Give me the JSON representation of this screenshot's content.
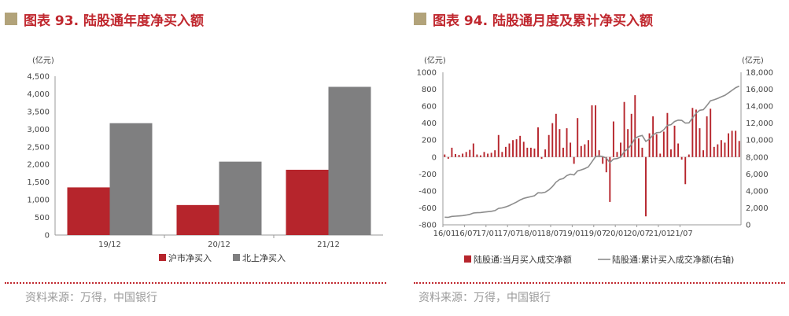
{
  "left_panel": {
    "title": "图表 93. 陆股通年度净买入额",
    "source": "资料来源：万得，中国银行"
  },
  "right_panel": {
    "title": "图表 94. 陆股通月度及累计净买入额",
    "source": "资料来源：万得，中国银行"
  },
  "colors": {
    "title_mark": "#b2a37a",
    "title_red": "#c0282f",
    "bar_red": "#b6252c",
    "bar_gray": "#7f7f80",
    "line_gray": "#8c8c8c",
    "axis": "#9a9a9a"
  },
  "chart_data": [
    {
      "type": "bar",
      "unit_label": "(亿元)",
      "categories": [
        "19/12",
        "20/12",
        "21/12"
      ],
      "series": [
        {
          "name": "沪市净买入",
          "values": [
            1350,
            850,
            1850
          ]
        },
        {
          "name": "北上净买入",
          "values": [
            3170,
            2080,
            4200
          ]
        }
      ],
      "yticks": [
        "0",
        "500",
        "1,000",
        "1,500",
        "2,000",
        "2,500",
        "3,000",
        "3,500",
        "4,000",
        "4,500"
      ],
      "ylim": [
        0,
        4500
      ],
      "legend_position": "bottom"
    },
    {
      "type": "bar+line",
      "left_unit_label": "(亿元)",
      "right_unit_label": "(亿元)",
      "x_tick_labels": [
        "16/01",
        "16/07",
        "17/01",
        "17/07",
        "18/01",
        "18/07",
        "19/01",
        "19/07",
        "20/01",
        "20/07",
        "21/01",
        "21/07"
      ],
      "left_yticks": [
        "-800",
        "-600",
        "-400",
        "-200",
        "0",
        "200",
        "400",
        "600",
        "800",
        "1000"
      ],
      "right_yticks": [
        "0",
        "2,000",
        "4,000",
        "6,000",
        "8,000",
        "10,000",
        "12,000",
        "14,000",
        "16,000",
        "18,000"
      ],
      "left_ylim": [
        -800,
        1000
      ],
      "right_ylim": [
        0,
        18000
      ],
      "series": [
        {
          "name": "陆股通:当月买入成交净额",
          "axis": "left",
          "kind": "bar",
          "values": [
            30,
            -20,
            110,
            35,
            25,
            40,
            60,
            85,
            160,
            30,
            20,
            60,
            40,
            50,
            80,
            260,
            60,
            120,
            160,
            200,
            210,
            250,
            180,
            110,
            110,
            100,
            350,
            -20,
            90,
            260,
            400,
            510,
            330,
            110,
            340,
            170,
            -80,
            460,
            130,
            150,
            200,
            610,
            610,
            80,
            -80,
            -180,
            -530,
            420,
            60,
            170,
            650,
            330,
            510,
            730,
            220,
            110,
            -700,
            280,
            480,
            270,
            40,
            300,
            520,
            90,
            370,
            160,
            -30,
            -320,
            30,
            580,
            560,
            340,
            80,
            480,
            570,
            120,
            150,
            200,
            170,
            280,
            310,
            310,
            190
          ]
        },
        {
          "name": "陆股通:累计买入成交净额(右轴)",
          "axis": "right",
          "kind": "line",
          "values": [
            900,
            880,
            990,
            1025,
            1050,
            1090,
            1150,
            1235,
            1395,
            1425,
            1445,
            1505,
            1545,
            1595,
            1675,
            1935,
            1995,
            2115,
            2275,
            2475,
            2685,
            2935,
            3115,
            3225,
            3335,
            3435,
            3785,
            3765,
            3855,
            4115,
            4515,
            5025,
            5355,
            5465,
            5805,
            5975,
            5895,
            6355,
            6485,
            6635,
            6835,
            7445,
            8055,
            8135,
            8055,
            7875,
            7345,
            7765,
            7825,
            7995,
            8645,
            8975,
            9485,
            10215,
            10435,
            10545,
            9845,
            10125,
            10605,
            10875,
            10915,
            11215,
            11735,
            11825,
            12195,
            12355,
            12325,
            12005,
            12035,
            12615,
            13175,
            13515,
            13595,
            14075,
            14645,
            14765,
            14915,
            15115,
            15285,
            15565,
            15875,
            16185,
            16375
          ]
        }
      ],
      "legend_position": "bottom"
    }
  ]
}
